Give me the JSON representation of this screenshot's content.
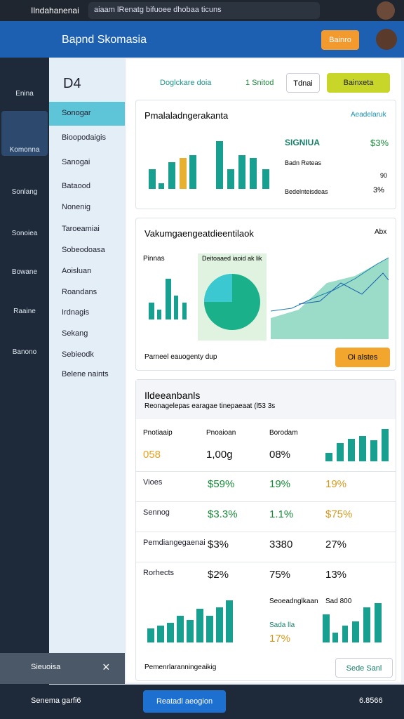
{
  "browser_bar": {
    "tab_title": "Ilndahanenai",
    "url": "aiaam lRenatg bifuoee dhobaa ticuns"
  },
  "header": {
    "title": "Bapnd Skomasia",
    "button": "Bainro"
  },
  "left_nav": {
    "logo_label": "Enina",
    "items": [
      "Komonna",
      "Sonlang",
      "Sonoiea",
      "Bowane",
      "Raaine",
      "Banono"
    ]
  },
  "sidebar": {
    "title": "D4",
    "items": [
      "Sonogar",
      "Bioopodaigis",
      "Sanogai",
      "Bataood",
      "Nonenig",
      "Taroeamiai",
      "Sobeodoasa",
      "Aoisluan",
      "Roandans",
      "Irdnagis",
      "Sekang",
      "Sebieodk",
      "Belene naints"
    ],
    "toast": "Sieuoisa"
  },
  "toolbar": {
    "label": "Doglckare doia",
    "status": "1 Snitod",
    "button": "Tdnai",
    "primary_button": "Bainxeta"
  },
  "card1": {
    "title": "Pmalaladngerakanta",
    "link": "Aeadelaruk",
    "stat_label": "SIGNIUA",
    "stat_value": "$3%",
    "rows": [
      [
        "Badn Reteas",
        "90"
      ],
      [
        "Bedelnteisdeas",
        "3%"
      ]
    ]
  },
  "card2": {
    "title": "Vakumgaengeatdieentilaok",
    "badge": "Abx",
    "chart_label": "Pinnas",
    "pie_label": "Deitoaaed iaoid ak lik",
    "footer": "Parneel eauogenty dup",
    "button": "Oi alstes"
  },
  "card3": {
    "title": "Ildeeanbanls",
    "subtitle": "Reonagelepas earagae tinepaeaat (l53 3s",
    "columns": [
      "Pnotiaaip",
      "Pnoaioan",
      "Borodam"
    ],
    "summary": [
      "058",
      "1,00g",
      "08%"
    ],
    "rows": [
      [
        "Vioes",
        "$59%",
        "19%",
        "19%"
      ],
      [
        "Sennog",
        "$3.3%",
        "1.1%",
        "$75%"
      ],
      [
        "Pemdiangegaenai",
        "$3%",
        "3380",
        "27%"
      ],
      [
        "Rorhects",
        "$2%",
        "75%",
        "13%"
      ]
    ],
    "mini_title": "Seoeadnglkaan",
    "mini_value": "Sad 800",
    "mini_label": "Sada lla",
    "mini_pct": "17%",
    "footer": "Pemenrlaranningeaikig",
    "button": "Sede Sanl"
  },
  "bottom_bar": {
    "label": "Senema garfi6",
    "button": "Reatadl aeogion",
    "status": "6.8566"
  }
}
